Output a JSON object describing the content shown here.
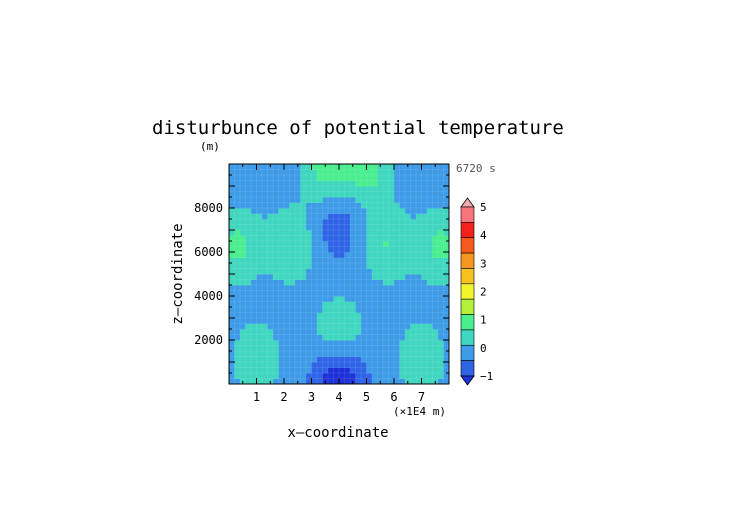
{
  "chart_data": {
    "type": "heatmap",
    "title": "disturbunce of potential temperature",
    "y_unit": "(m)",
    "time_label": "6720 s",
    "xlabel": "x—coordinate",
    "ylabel": "z—coordinate",
    "x_unit": "(×1E4 m)",
    "xlim": [
      0,
      8
    ],
    "ylim": [
      0,
      10000
    ],
    "x_ticks": [
      1,
      2,
      3,
      4,
      5,
      6,
      7
    ],
    "y_ticks": [
      2000,
      4000,
      6000,
      8000
    ],
    "colorbar": {
      "levels": [
        -1,
        -0.5,
        0,
        0.5,
        1,
        1.5,
        2,
        2.5,
        3,
        3.5,
        4,
        4.5,
        5
      ],
      "tick_labels": [
        "−1",
        "0",
        "1",
        "2",
        "3",
        "4",
        "5"
      ],
      "colors": [
        "#1e30d8",
        "#2f64e6",
        "#3e9be8",
        "#3fd7c0",
        "#49ee8f",
        "#b3f03a",
        "#f1f52b",
        "#f7c11e",
        "#f7961e",
        "#f55a1d",
        "#f2221a",
        "#f6747a",
        "#f5aab0"
      ]
    },
    "field": {
      "description_values": "potential temperature disturbance in K",
      "background": 0.2,
      "regions": [
        {
          "x": 3.95,
          "z": 7300,
          "value": -0.35
        },
        {
          "x": 2.25,
          "z": 6300,
          "value": 1.0
        },
        {
          "x": 5.75,
          "z": 6300,
          "value": 1.0
        },
        {
          "x": 0.3,
          "z": 6300,
          "value": 1.1
        },
        {
          "x": 7.7,
          "z": 6300,
          "value": 1.1
        },
        {
          "x": 4.0,
          "z": 2300,
          "value": 1.0
        },
        {
          "x": 1.0,
          "z": 1200,
          "value": 0.9
        },
        {
          "x": 7.0,
          "z": 1200,
          "value": 0.9
        },
        {
          "x": 4.0,
          "z": 200,
          "value": -1.0
        },
        {
          "x": 3.5,
          "z": 9800,
          "value": 1.2
        },
        {
          "x": 5.0,
          "z": 9800,
          "value": 1.2
        }
      ]
    }
  }
}
